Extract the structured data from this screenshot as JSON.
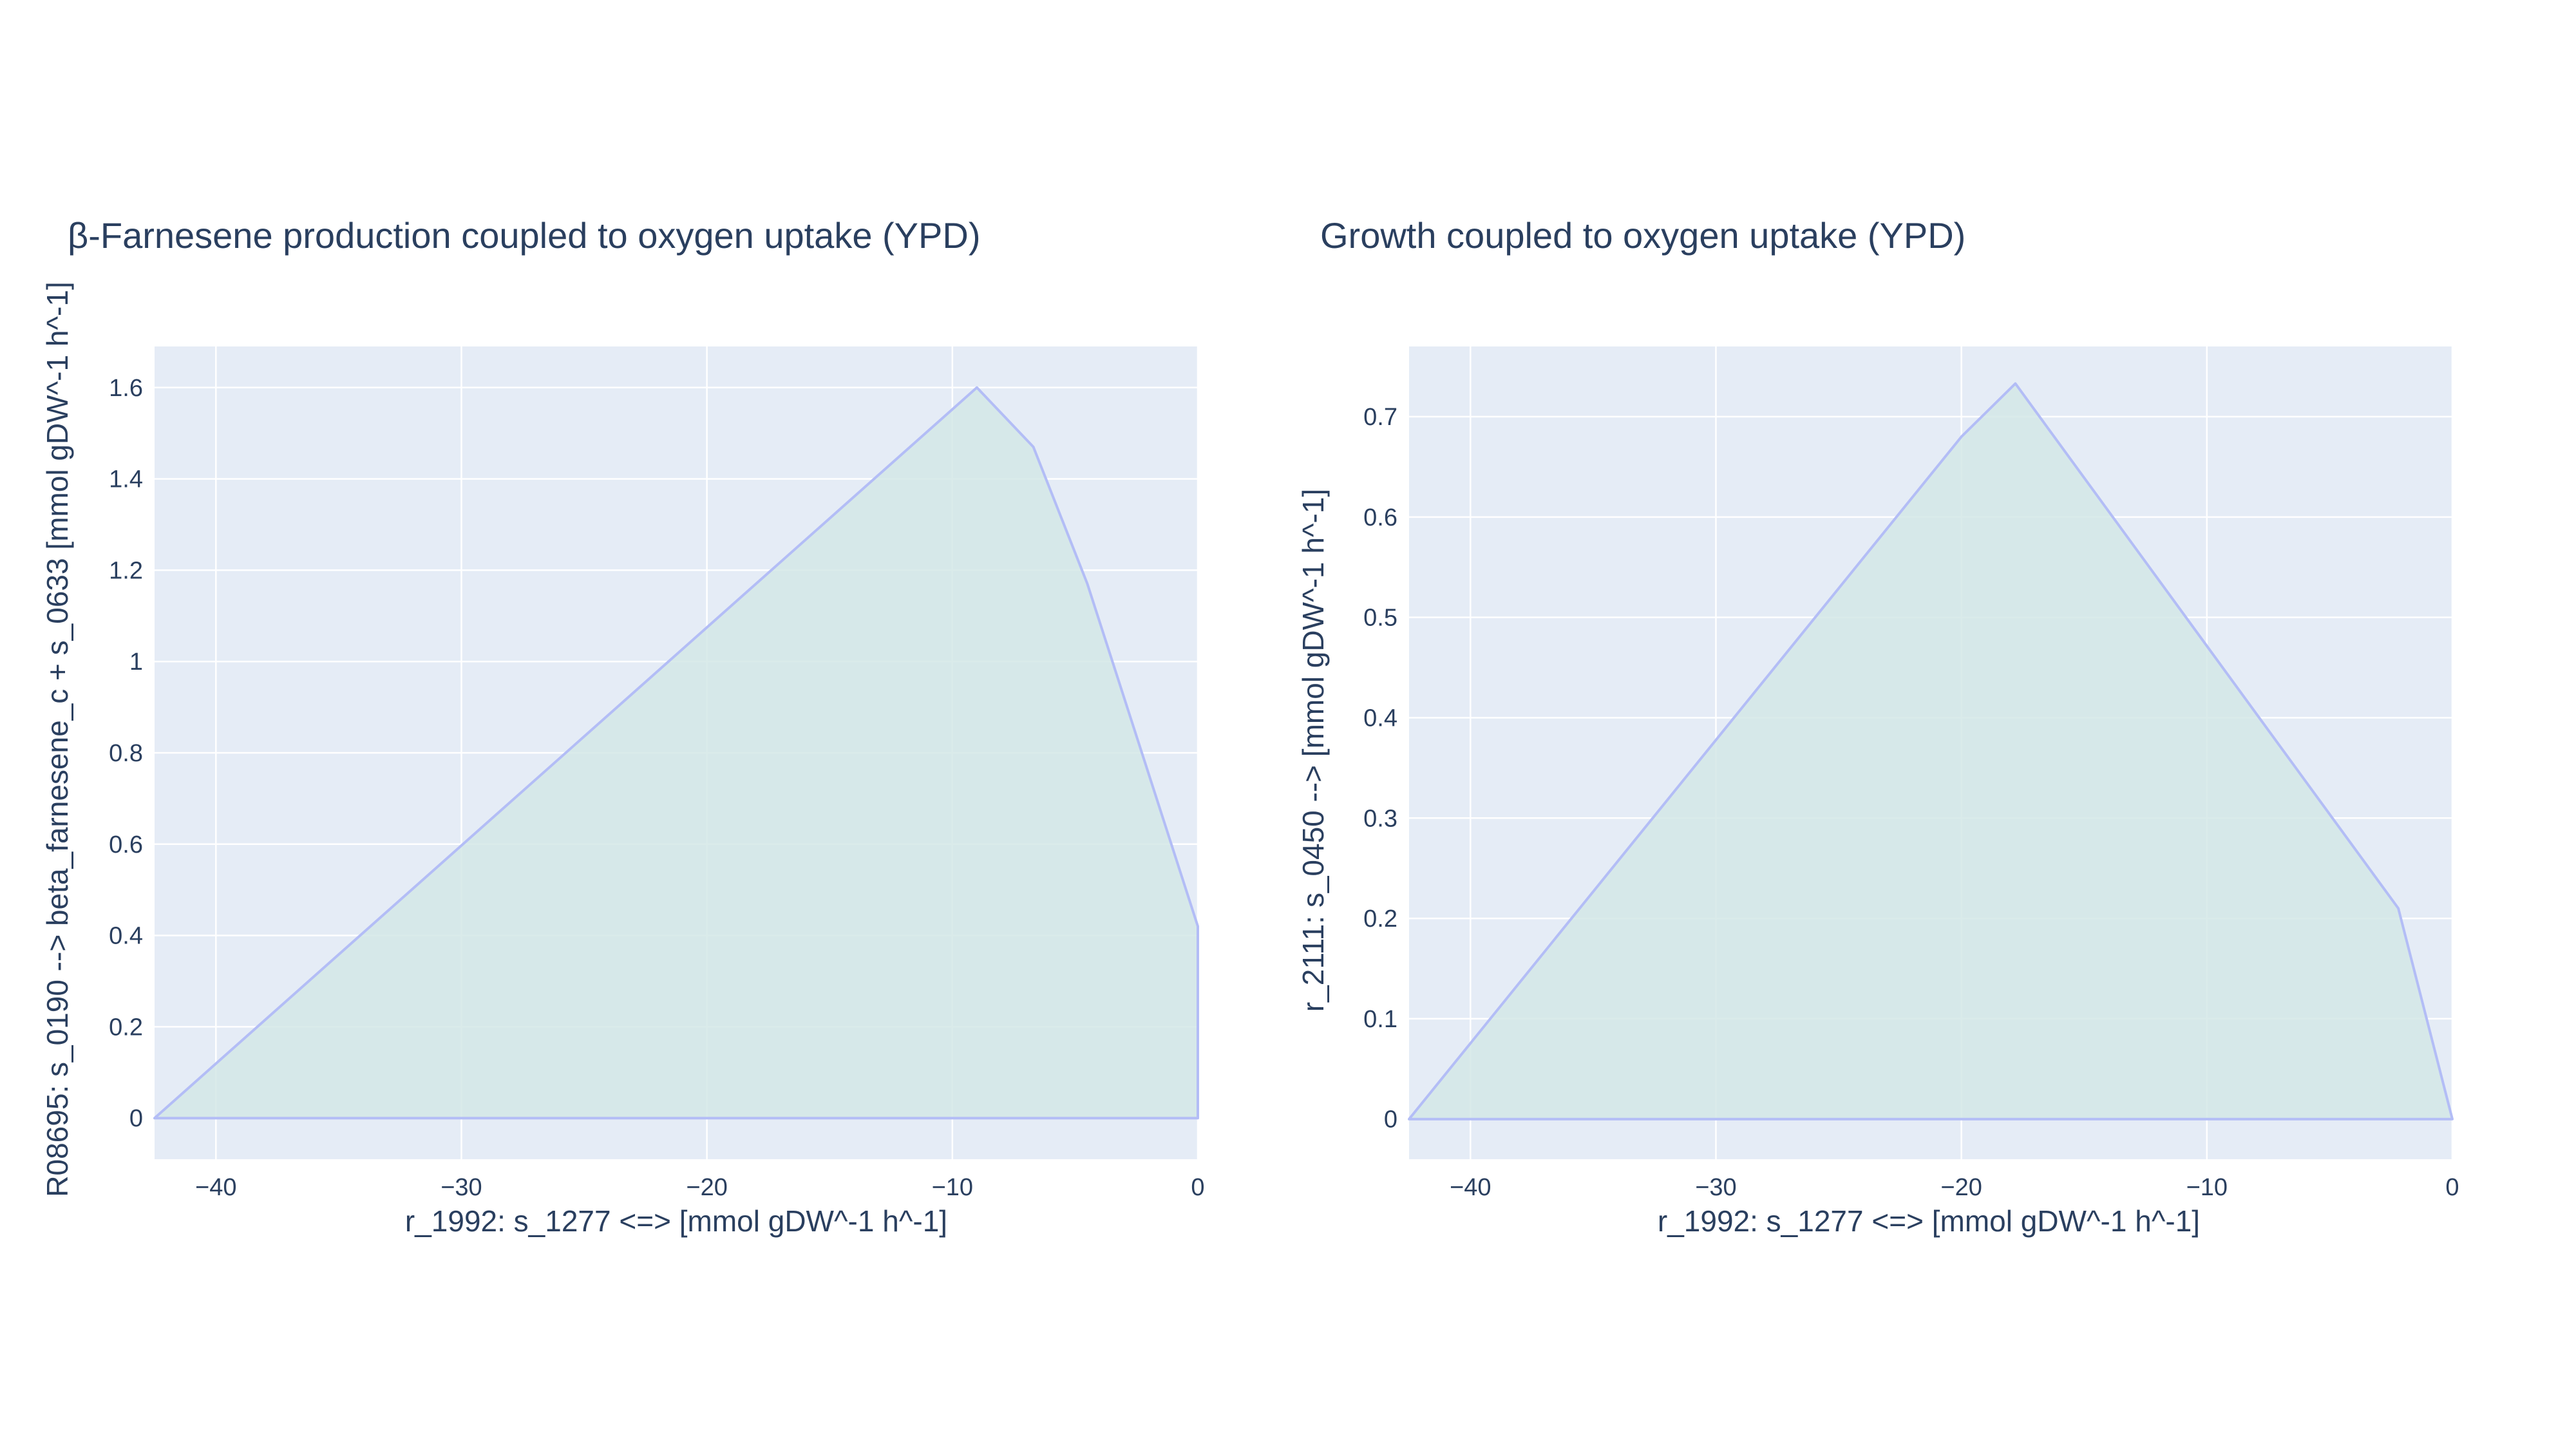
{
  "chart_data": [
    {
      "type": "area",
      "title": "β-Farnesene production coupled to oxygen uptake (YPD)",
      "xlabel": "r_1992: s_1277 <=>  [mmol gDW^-1 h^-1]",
      "ylabel": "R08695: s_0190 --> beta_farnesene_c + s_0633 [mmol gDW^-1 h^-1]",
      "xlim": [
        -42.5,
        0
      ],
      "ylim": [
        -0.09,
        1.69
      ],
      "xticks": [
        -40,
        -30,
        -20,
        -10,
        0
      ],
      "xtick_labels": [
        "−40",
        "−30",
        "−20",
        "−10",
        "0"
      ],
      "yticks": [
        0,
        0.2,
        0.4,
        0.6,
        0.8,
        1,
        1.2,
        1.4,
        1.6
      ],
      "ytick_labels": [
        "0",
        "0.2",
        "0.4",
        "0.6",
        "0.8",
        "1",
        "1.2",
        "1.4",
        "1.6"
      ],
      "grid": true,
      "series": [
        {
          "x": [
            -42.5,
            -9.0,
            -6.7,
            -4.5,
            0.0,
            0.0,
            -42.5
          ],
          "y": [
            0.0,
            1.6,
            1.47,
            1.17,
            0.42,
            0.0,
            0.0
          ]
        }
      ]
    },
    {
      "type": "area",
      "title": "Growth coupled to oxygen uptake (YPD)",
      "xlabel": "r_1992: s_1277 <=>  [mmol gDW^-1 h^-1]",
      "ylabel": "r_2111: s_0450 -->  [mmol gDW^-1 h^-1]",
      "xlim": [
        -42.5,
        0
      ],
      "ylim": [
        -0.04,
        0.77
      ],
      "xticks": [
        -40,
        -30,
        -20,
        -10,
        0
      ],
      "xtick_labels": [
        "−40",
        "−30",
        "−20",
        "−10",
        "0"
      ],
      "yticks": [
        0,
        0.1,
        0.2,
        0.3,
        0.4,
        0.5,
        0.6,
        0.7
      ],
      "ytick_labels": [
        "0",
        "0.1",
        "0.2",
        "0.3",
        "0.4",
        "0.5",
        "0.6",
        "0.7"
      ],
      "grid": true,
      "series": [
        {
          "x": [
            -42.5,
            -20.0,
            -17.8,
            -2.2,
            0.0,
            -42.5
          ],
          "y": [
            0.0,
            0.68,
            0.733,
            0.21,
            0.0,
            0.0
          ]
        }
      ]
    }
  ],
  "colors": {
    "plot_background": "#e5ecf6",
    "grid": "#ffffff",
    "line": "#b3bdf6",
    "fill": "#d4e7e6",
    "text": "#2a3f5f"
  }
}
